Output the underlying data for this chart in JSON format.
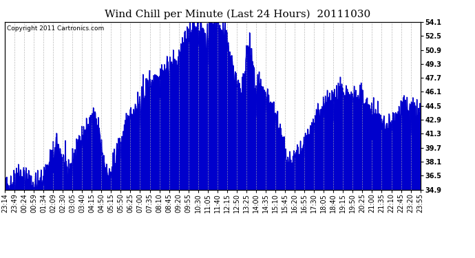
{
  "title": "Wind Chill per Minute (Last 24 Hours)  20111030",
  "copyright_text": "Copyright 2011 Cartronics.com",
  "ylim": [
    34.9,
    54.1
  ],
  "yticks": [
    34.9,
    36.5,
    38.1,
    39.7,
    41.3,
    42.9,
    44.5,
    46.1,
    47.7,
    49.3,
    50.9,
    52.5,
    54.1
  ],
  "x_labels": [
    "23:14",
    "23:49",
    "00:24",
    "00:59",
    "01:34",
    "02:09",
    "02:30",
    "03:05",
    "03:40",
    "04:15",
    "04:50",
    "05:15",
    "05:50",
    "06:25",
    "07:00",
    "07:35",
    "08:10",
    "08:45",
    "09:20",
    "09:55",
    "10:30",
    "11:05",
    "11:40",
    "12:15",
    "12:50",
    "13:25",
    "14:00",
    "14:35",
    "15:10",
    "15:45",
    "16:20",
    "16:55",
    "17:30",
    "18:05",
    "18:40",
    "19:15",
    "19:50",
    "20:25",
    "21:00",
    "21:35",
    "22:10",
    "22:45",
    "23:20",
    "23:55"
  ],
  "line_color": "#0000cc",
  "background_color": "#ffffff",
  "grid_color": "#aaaaaa",
  "title_fontsize": 11,
  "tick_fontsize": 7,
  "copyright_fontsize": 6.5
}
